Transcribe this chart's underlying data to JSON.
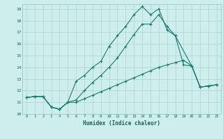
{
  "xlabel": "Humidex (Indice chaleur)",
  "background_color": "#ceeeed",
  "grid_color": "#aad4d2",
  "line_color": "#1a7a6e",
  "xlim": [
    -0.5,
    23.5
  ],
  "ylim": [
    10,
    19.4
  ],
  "xticks": [
    0,
    1,
    2,
    3,
    4,
    5,
    6,
    7,
    8,
    9,
    10,
    11,
    12,
    13,
    14,
    15,
    16,
    17,
    18,
    19,
    20,
    21,
    22,
    23
  ],
  "yticks": [
    10,
    11,
    12,
    13,
    14,
    15,
    16,
    17,
    18,
    19
  ],
  "line1_x": [
    0,
    1,
    2,
    3,
    4,
    5,
    6,
    7,
    8,
    9,
    10,
    11,
    12,
    13,
    14,
    15,
    16,
    17,
    18,
    20,
    21,
    22,
    23
  ],
  "line1_y": [
    11.4,
    11.5,
    11.5,
    10.6,
    10.4,
    11.0,
    12.8,
    13.3,
    14.0,
    14.5,
    15.8,
    16.7,
    17.5,
    18.5,
    19.2,
    18.5,
    19.0,
    17.2,
    16.7,
    14.1,
    12.3,
    12.4,
    12.5
  ],
  "line2_x": [
    0,
    1,
    2,
    3,
    4,
    5,
    6,
    7,
    8,
    9,
    10,
    11,
    12,
    13,
    14,
    15,
    16,
    17,
    18,
    19,
    20,
    21,
    22,
    23
  ],
  "line2_y": [
    11.4,
    11.5,
    11.5,
    10.6,
    10.4,
    11.0,
    11.2,
    12.0,
    12.7,
    13.3,
    14.0,
    14.8,
    15.8,
    16.8,
    17.7,
    17.7,
    18.5,
    17.5,
    16.7,
    14.2,
    14.1,
    12.3,
    12.4,
    12.5
  ],
  "line3_x": [
    0,
    1,
    2,
    3,
    4,
    5,
    6,
    7,
    8,
    9,
    10,
    11,
    12,
    13,
    14,
    15,
    16,
    17,
    18,
    19,
    20,
    21,
    22,
    23
  ],
  "line3_y": [
    11.4,
    11.5,
    11.5,
    10.6,
    10.4,
    11.0,
    11.0,
    11.3,
    11.6,
    11.9,
    12.2,
    12.5,
    12.8,
    13.1,
    13.4,
    13.7,
    14.0,
    14.2,
    14.4,
    14.6,
    14.1,
    12.3,
    12.4,
    12.5
  ]
}
